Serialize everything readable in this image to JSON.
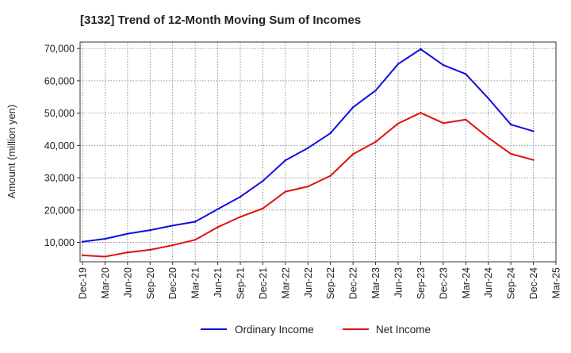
{
  "chart_data": {
    "type": "line",
    "title": "[3132]  Trend of 12-Month Moving Sum of Incomes",
    "xlabel": "",
    "ylabel": "Amount (million yen)",
    "ylim": [
      4000,
      72000
    ],
    "y_ticks": [
      10000,
      20000,
      30000,
      40000,
      50000,
      60000,
      70000
    ],
    "y_tick_labels": [
      "10,000",
      "20,000",
      "30,000",
      "40,000",
      "50,000",
      "60,000",
      "70,000"
    ],
    "categories": [
      "Dec-19",
      "Mar-20",
      "Jun-20",
      "Sep-20",
      "Dec-20",
      "Mar-21",
      "Jun-21",
      "Sep-21",
      "Dec-21",
      "Mar-22",
      "Jun-22",
      "Sep-22",
      "Dec-22",
      "Mar-23",
      "Jun-23",
      "Sep-23",
      "Dec-23",
      "Mar-24",
      "Jun-24",
      "Sep-24",
      "Dec-24",
      "Mar-25"
    ],
    "grid": true,
    "legend_position": "bottom",
    "series": [
      {
        "name": "Ordinary Income",
        "color": "#1010e0",
        "values": [
          10200,
          11100,
          12700,
          13800,
          15200,
          16400,
          20300,
          24100,
          29000,
          35400,
          39200,
          43800,
          51800,
          57000,
          65200,
          69800,
          64900,
          62100,
          54600,
          46500,
          44400,
          null
        ]
      },
      {
        "name": "Net Income",
        "color": "#e01010",
        "values": [
          6000,
          5600,
          6900,
          7700,
          9100,
          10800,
          14700,
          17900,
          20500,
          25700,
          27300,
          30600,
          37300,
          41100,
          46800,
          50100,
          46900,
          48000,
          42400,
          37400,
          35500,
          null
        ]
      }
    ]
  }
}
